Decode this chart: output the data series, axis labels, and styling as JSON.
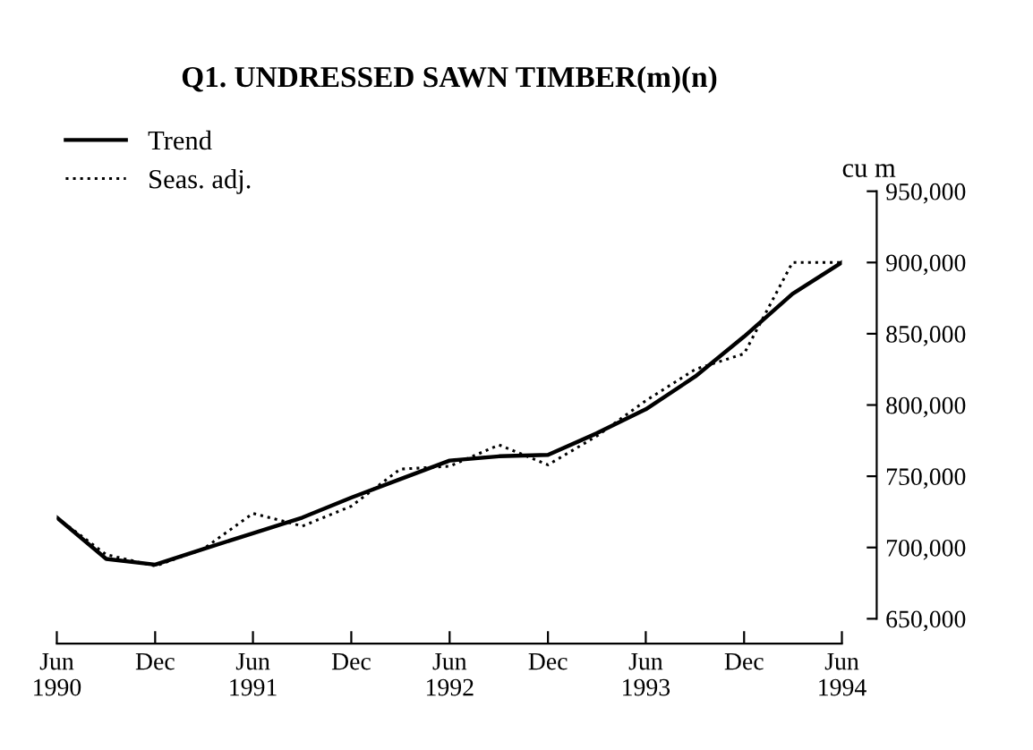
{
  "chart_data": {
    "type": "line",
    "title": "Q1. UNDRESSED SAWN TIMBER(m)(n)",
    "ylabel": "cu m",
    "x": [
      "1990-06",
      "1990-09",
      "1990-12",
      "1991-03",
      "1991-06",
      "1991-09",
      "1991-12",
      "1992-03",
      "1992-06",
      "1992-09",
      "1992-12",
      "1993-03",
      "1993-06",
      "1993-09",
      "1993-12",
      "1994-03",
      "1994-06"
    ],
    "series": [
      {
        "name": "Trend",
        "color": "#000000",
        "line_style": "solid",
        "values": [
          721000,
          692000,
          688000,
          699000,
          710000,
          721000,
          735000,
          748000,
          761000,
          764000,
          765000,
          780000,
          797000,
          820000,
          848000,
          878000,
          900000
        ]
      },
      {
        "name": "Seas. adj.",
        "color": "#000000",
        "line_style": "dotted",
        "values": [
          721000,
          695000,
          687000,
          699000,
          724000,
          715000,
          729000,
          755000,
          757000,
          772000,
          758000,
          778000,
          803000,
          825000,
          836000,
          900000,
          900000
        ]
      }
    ],
    "xlim": [
      "1990-06",
      "1994-06"
    ],
    "xticks": [
      {
        "value": "1990-06",
        "label": "Jun\n1990"
      },
      {
        "value": "1990-12",
        "label": "Dec"
      },
      {
        "value": "1991-06",
        "label": "Jun\n1991"
      },
      {
        "value": "1991-12",
        "label": "Dec"
      },
      {
        "value": "1992-06",
        "label": "Jun\n1992"
      },
      {
        "value": "1992-12",
        "label": "Dec"
      },
      {
        "value": "1993-06",
        "label": "Jun\n1993"
      },
      {
        "value": "1993-12",
        "label": "Dec"
      },
      {
        "value": "1994-06",
        "label": "Jun\n1994"
      }
    ],
    "ylim": [
      650000,
      950000
    ],
    "yticks": [
      {
        "value": 650000,
        "label": "650,000"
      },
      {
        "value": 700000,
        "label": "700,000"
      },
      {
        "value": 750000,
        "label": "750,000"
      },
      {
        "value": 800000,
        "label": "800,000"
      },
      {
        "value": 850000,
        "label": "850,000"
      },
      {
        "value": 900000,
        "label": "900,000"
      },
      {
        "value": 950000,
        "label": "950,000"
      }
    ],
    "grid": false,
    "legend": "top left"
  }
}
